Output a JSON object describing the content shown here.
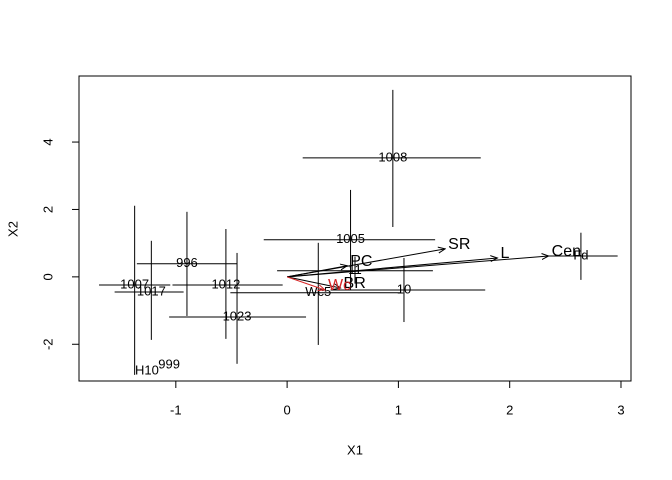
{
  "chart_data": {
    "type": "biplot",
    "xlabel": "X1",
    "ylabel": "X2",
    "xlim": [
      -1.87,
      3.09
    ],
    "ylim": [
      -3.09,
      5.96
    ],
    "xticks": [
      -1,
      0,
      1,
      2,
      3
    ],
    "yticks": [
      -2,
      0,
      2,
      4
    ],
    "points": [
      {
        "label": "1008",
        "x": 0.95,
        "y": 3.53,
        "xmin": 0.14,
        "xmax": 1.74,
        "ymin": 1.48,
        "ymax": 5.55
      },
      {
        "label": "1005",
        "x": 0.57,
        "y": 1.1,
        "xmin": -0.21,
        "xmax": 1.33,
        "ymin": -0.39,
        "ymax": 2.58
      },
      {
        "label": "996",
        "x": -0.9,
        "y": 0.39,
        "xmin": -1.35,
        "xmax": -0.45,
        "ymin": -1.16,
        "ymax": 1.93
      },
      {
        "label": "1007",
        "x": -1.37,
        "y": -0.24,
        "xmin": -1.69,
        "xmax": -1.05,
        "ymin": -2.91,
        "ymax": 2.11
      },
      {
        "label": "1017",
        "x": -1.22,
        "y": -0.45,
        "xmin": -1.55,
        "xmax": -0.93,
        "ymin": -1.87,
        "ymax": 1.07
      },
      {
        "label": "1012",
        "x": -0.55,
        "y": -0.24,
        "xmin": -1.03,
        "xmax": -0.04,
        "ymin": -1.84,
        "ymax": 1.42
      },
      {
        "label": "1023",
        "x": -0.45,
        "y": -1.19,
        "xmin": -1.06,
        "xmax": 0.17,
        "ymin": -2.58,
        "ymax": 0.71
      },
      {
        "label": "11",
        "x": 0.61,
        "y": 0.18,
        "xmin": -0.09,
        "xmax": 1.31,
        "ymin": -0.2,
        "ymax": 0.6
      },
      {
        "label": "10",
        "x": 1.05,
        "y": -0.39,
        "xmin": 0.39,
        "xmax": 1.78,
        "ymin": -1.34,
        "ymax": 0.56
      },
      {
        "label": "Wc5",
        "x": 0.28,
        "y": -0.47,
        "xmin": -0.51,
        "xmax": 1.02,
        "ymin": -2.02,
        "ymax": 1.01
      },
      {
        "label": "Fd",
        "x": 2.64,
        "y": 0.62,
        "xmin": 2.35,
        "xmax": 2.97,
        "ymin": -0.09,
        "ymax": 1.31
      },
      {
        "label": "H10",
        "x": -1.26,
        "y": -2.79
      },
      {
        "label": "999",
        "x": -1.06,
        "y": -2.61
      }
    ],
    "arrows": [
      {
        "label": "SR",
        "x": 1.42,
        "y": 0.83,
        "color": "#000000"
      },
      {
        "label": "L",
        "x": 1.89,
        "y": 0.56,
        "color": "#000000"
      },
      {
        "label": "Cen",
        "x": 2.35,
        "y": 0.62,
        "color": "#000000"
      },
      {
        "label": "PC",
        "x": 0.54,
        "y": 0.33,
        "color": "#000000"
      },
      {
        "label": "BR",
        "x": 0.48,
        "y": -0.33,
        "color": "#000000"
      },
      {
        "label": "Wc",
        "x": 0.34,
        "y": -0.39,
        "color": "#d62728"
      }
    ]
  }
}
